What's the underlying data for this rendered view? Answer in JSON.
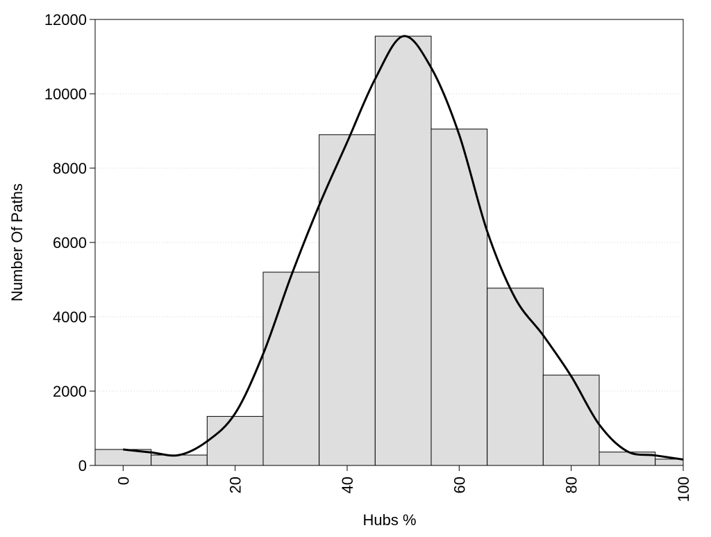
{
  "chart_data": {
    "type": "bar",
    "xlabel": "Hubs %",
    "ylabel": "Number Of Paths",
    "xlim": [
      -5,
      100
    ],
    "ylim": [
      0,
      12000
    ],
    "x_ticks": [
      0,
      20,
      40,
      60,
      80,
      100
    ],
    "y_ticks": [
      0,
      2000,
      4000,
      6000,
      8000,
      10000,
      12000
    ],
    "grid": "horizontal dotted",
    "bin_width": 10,
    "bars": [
      {
        "x": 0,
        "value": 430
      },
      {
        "x": 10,
        "value": 280
      },
      {
        "x": 20,
        "value": 1320
      },
      {
        "x": 30,
        "value": 5200
      },
      {
        "x": 40,
        "value": 8900
      },
      {
        "x": 50,
        "value": 11550
      },
      {
        "x": 60,
        "value": 9050
      },
      {
        "x": 70,
        "value": 4770
      },
      {
        "x": 80,
        "value": 2430
      },
      {
        "x": 90,
        "value": 360
      },
      {
        "x": 100,
        "value": 170
      }
    ],
    "density_curve": [
      [
        0,
        430
      ],
      [
        5,
        350
      ],
      [
        10,
        280
      ],
      [
        15,
        650
      ],
      [
        20,
        1400
      ],
      [
        25,
        3000
      ],
      [
        30,
        5100
      ],
      [
        35,
        7000
      ],
      [
        40,
        8700
      ],
      [
        45,
        10400
      ],
      [
        50,
        11550
      ],
      [
        55,
        10700
      ],
      [
        60,
        8900
      ],
      [
        65,
        6300
      ],
      [
        70,
        4500
      ],
      [
        75,
        3500
      ],
      [
        80,
        2400
      ],
      [
        85,
        1100
      ],
      [
        90,
        380
      ],
      [
        95,
        270
      ],
      [
        100,
        160
      ]
    ],
    "colors": {
      "bar_fill": "#dedede",
      "bar_stroke": "#000000",
      "curve": "#000000",
      "grid": "#cccccc"
    }
  }
}
